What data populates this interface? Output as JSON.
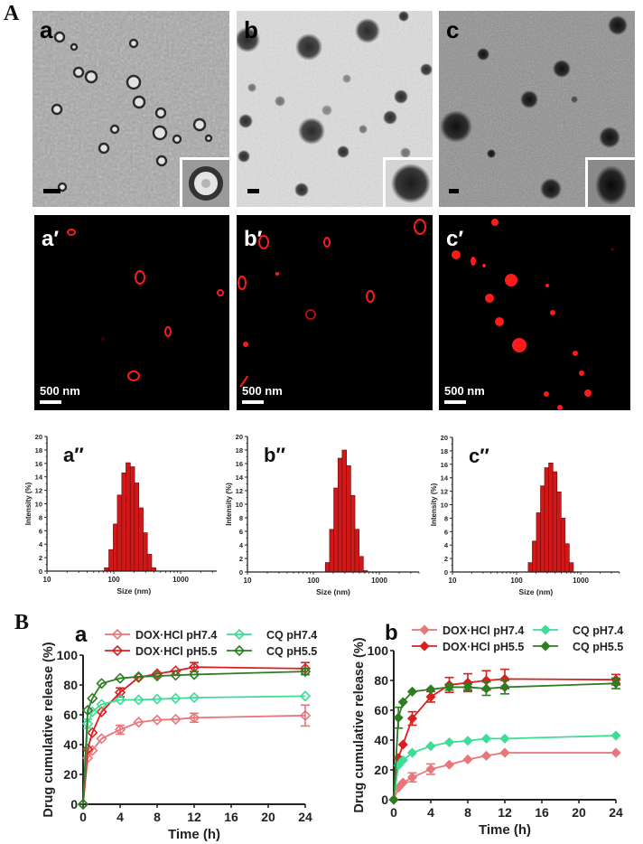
{
  "section_A": {
    "label": "A",
    "tem_panels": [
      {
        "letter": "a",
        "scale_bar": true,
        "inset": true
      },
      {
        "letter": "b",
        "scale_bar": true,
        "inset": true
      },
      {
        "letter": "c",
        "scale_bar": true,
        "inset": true
      }
    ],
    "fluorescence_panels": [
      {
        "letter": "a′",
        "scale_label": "500 nm"
      },
      {
        "letter": "b′",
        "scale_label": "500 nm"
      },
      {
        "letter": "c′",
        "scale_label": "500 nm"
      }
    ]
  },
  "section_B": {
    "label": "B"
  },
  "colors": {
    "dox_ph74": "#e8767a",
    "dox_ph55": "#d91f1f",
    "cq_ph74": "#3ddc97",
    "cq_ph55": "#2e7d22",
    "bar_fill": "#d01818",
    "bar_edge": "#6a0a0a"
  },
  "chart_data": [
    {
      "id": "a2",
      "panel_label": "a″",
      "type": "bar",
      "title": "",
      "xlabel": "Size (nm)",
      "ylabel": "Intensity (%)",
      "xscale": "log",
      "xlim": [
        10,
        4000
      ],
      "ylim": [
        0,
        20
      ],
      "xticks": [
        "10",
        "100",
        "1000"
      ],
      "yticks": [
        "0",
        "2",
        "4",
        "6",
        "8",
        "10",
        "12",
        "14",
        "16",
        "18",
        "20"
      ],
      "x": [
        78,
        91,
        106,
        122,
        142,
        164,
        190,
        220,
        255,
        295,
        342,
        396,
        459
      ],
      "values": [
        0.5,
        3.2,
        7.0,
        11.3,
        14.6,
        16.1,
        15.5,
        13.1,
        9.4,
        5.7,
        2.5,
        0.5,
        0
      ]
    },
    {
      "id": "b2",
      "panel_label": "b″",
      "type": "bar",
      "title": "",
      "xlabel": "Size (nm)",
      "ylabel": "Intensity (%)",
      "xscale": "log",
      "xlim": [
        10,
        4000
      ],
      "ylim": [
        0,
        20
      ],
      "xticks": [
        "10",
        "100",
        "1000"
      ],
      "yticks": [
        "0",
        "2",
        "4",
        "6",
        "8",
        "10",
        "12",
        "14",
        "16",
        "18",
        "20"
      ],
      "x": [
        164,
        190,
        220,
        255,
        295,
        342,
        396,
        459,
        531,
        615
      ],
      "values": [
        1.4,
        6.3,
        12.4,
        16.8,
        18.0,
        15.7,
        11.3,
        6.3,
        2.3,
        0.2
      ]
    },
    {
      "id": "c2",
      "panel_label": "c″",
      "type": "bar",
      "title": "",
      "xlabel": "Size (nm)",
      "ylabel": "Intensity (%)",
      "xscale": "log",
      "xlim": [
        10,
        4000
      ],
      "ylim": [
        0,
        20
      ],
      "xticks": [
        "10",
        "100",
        "1000"
      ],
      "yticks": [
        "0",
        "2",
        "4",
        "6",
        "8",
        "10",
        "12",
        "14",
        "16",
        "18",
        "20"
      ],
      "x": [
        164,
        190,
        220,
        255,
        295,
        342,
        396,
        459,
        531,
        615,
        712
      ],
      "values": [
        1.4,
        4.6,
        8.8,
        12.8,
        15.5,
        16.2,
        14.9,
        11.9,
        8.0,
        4.2,
        1.4
      ]
    },
    {
      "id": "Ba",
      "panel_label": "a",
      "type": "line",
      "title": "",
      "xlabel": "Time (h)",
      "ylabel": "Drug cumulative release (%)",
      "xlim": [
        0,
        24
      ],
      "ylim": [
        0,
        100
      ],
      "xticks": [
        "0",
        "4",
        "8",
        "12",
        "16",
        "20",
        "24"
      ],
      "yticks": [
        "0",
        "20",
        "40",
        "60",
        "80",
        "100"
      ],
      "marker": "open-diamond",
      "x": [
        0,
        0.5,
        1,
        2,
        4,
        6,
        8,
        10,
        12,
        24
      ],
      "series": [
        {
          "name": "DOX·HCl pH7.4",
          "color_key": "dox_ph74",
          "values": [
            0,
            31,
            36,
            44,
            50,
            55,
            56.5,
            57,
            58,
            59.5
          ],
          "errors": [
            0,
            1,
            1,
            1,
            3,
            1,
            1,
            1,
            3,
            7
          ]
        },
        {
          "name": "DOX·HCl pH5.5",
          "color_key": "dox_ph55",
          "values": [
            0,
            37,
            48,
            62,
            75,
            85,
            87.5,
            89.5,
            92,
            91
          ],
          "errors": [
            0,
            1,
            1,
            1,
            3,
            1,
            1,
            1,
            3,
            4
          ]
        },
        {
          "name": "CQ pH7.4",
          "color_key": "cq_ph74",
          "values": [
            0,
            54,
            62,
            67,
            70,
            70,
            70.5,
            71,
            71.5,
            72.5
          ],
          "errors": [
            0,
            3,
            1,
            1,
            1,
            1,
            1,
            1,
            1,
            1
          ]
        },
        {
          "name": "CQ pH5.5",
          "color_key": "cq_ph55",
          "values": [
            0,
            63,
            71,
            81,
            84.5,
            85.5,
            86,
            86.5,
            87,
            89
          ],
          "errors": [
            0,
            1,
            1,
            1,
            1,
            1,
            1,
            1,
            1,
            2
          ]
        }
      ],
      "legend_position": "top"
    },
    {
      "id": "Bb",
      "panel_label": "b",
      "type": "line",
      "title": "",
      "xlabel": "Time (h)",
      "ylabel": "Drug cumulative release (%)",
      "xlim": [
        0,
        24
      ],
      "ylim": [
        0,
        100
      ],
      "xticks": [
        "0",
        "4",
        "8",
        "12",
        "16",
        "20",
        "24"
      ],
      "yticks": [
        "0",
        "20",
        "40",
        "60",
        "80",
        "100"
      ],
      "marker": "filled-diamond",
      "x": [
        0,
        0.5,
        1,
        2,
        4,
        6,
        8,
        10,
        12,
        24
      ],
      "series": [
        {
          "name": "DOX·HCl pH7.4",
          "color_key": "dox_ph74",
          "values": [
            0,
            8,
            11.5,
            15,
            20.5,
            23.5,
            27,
            29.5,
            31.5,
            31.5
          ],
          "errors": [
            0,
            1,
            1,
            3,
            3.5,
            1,
            1,
            1,
            1,
            1
          ]
        },
        {
          "name": "DOX·HCl pH5.5",
          "color_key": "dox_ph55",
          "values": [
            0,
            28,
            37,
            54.5,
            69,
            77,
            78.5,
            80,
            81,
            80.5
          ],
          "errors": [
            0,
            1,
            1,
            4.5,
            3.5,
            5,
            6,
            6.5,
            6.5,
            3.5
          ]
        },
        {
          "name": "CQ pH7.4",
          "color_key": "cq_ph74",
          "values": [
            0,
            23,
            26.5,
            31.5,
            36,
            38.5,
            39.5,
            41,
            41,
            43
          ],
          "errors": [
            0,
            1,
            1,
            1,
            1,
            1,
            1,
            1,
            1,
            1
          ]
        },
        {
          "name": "CQ pH5.5",
          "color_key": "cq_ph55",
          "values": [
            0,
            55,
            65.5,
            72.5,
            74,
            75.5,
            75.5,
            74.5,
            75.5,
            78
          ],
          "errors": [
            0,
            7,
            1,
            1,
            1,
            2,
            2,
            4.5,
            4.5,
            3.5
          ]
        }
      ],
      "legend_position": "top"
    }
  ]
}
